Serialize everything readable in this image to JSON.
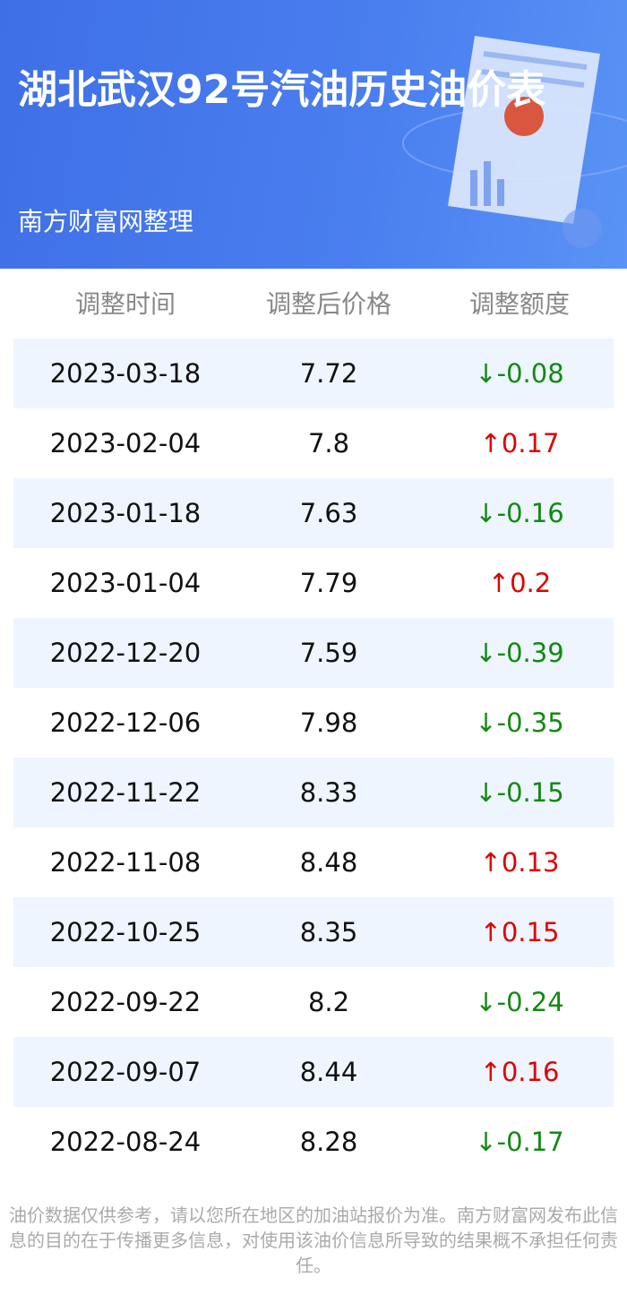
{
  "header": {
    "title": "湖北武汉92号汽油历史油价表",
    "subtitle": "南方财富网整理"
  },
  "table": {
    "columns": [
      "调整时间",
      "调整后价格",
      "调整额度"
    ],
    "rows": [
      [
        "2023-03-18",
        "7.72",
        "↓-0.08"
      ],
      [
        "2023-02-04",
        "7.8",
        "↑0.17"
      ],
      [
        "2023-01-18",
        "7.63",
        "↓-0.16"
      ],
      [
        "2023-01-04",
        "7.79",
        "↑0.2"
      ],
      [
        "2022-12-20",
        "7.59",
        "↓-0.39"
      ],
      [
        "2022-12-06",
        "7.98",
        "↓-0.35"
      ],
      [
        "2022-11-22",
        "8.33",
        "↓-0.15"
      ],
      [
        "2022-11-08",
        "8.48",
        "↑0.13"
      ],
      [
        "2022-10-25",
        "8.35",
        "↑0.15"
      ],
      [
        "2022-09-22",
        "8.2",
        "↓-0.24"
      ],
      [
        "2022-09-07",
        "8.44",
        "↑0.16"
      ],
      [
        "2022-08-24",
        "8.28",
        "↓-0.17"
      ]
    ]
  },
  "footer": "油价数据仅供参考，请以您所在地区的加油站报价为准。南方财富网发布此信息的目的在于传播更多信息，对使用该油价信息所导致的结果概不承担任何责任。"
}
